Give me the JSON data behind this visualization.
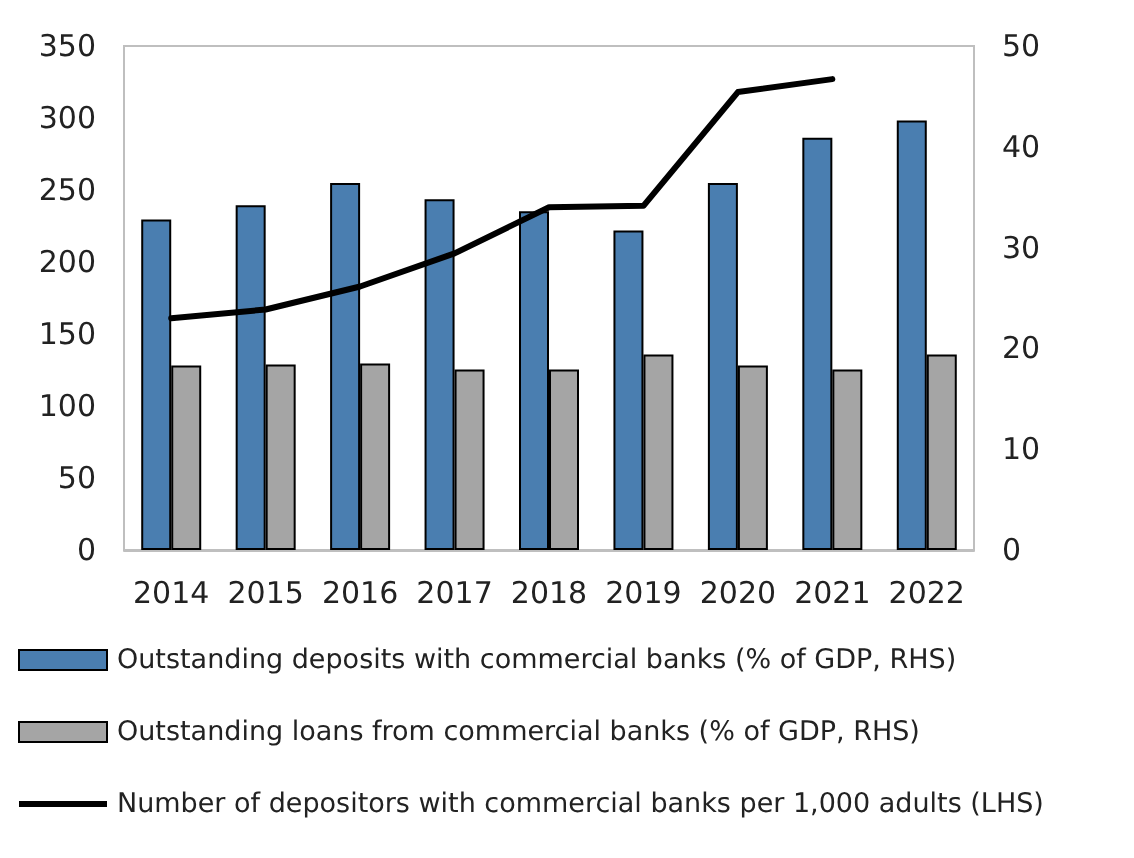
{
  "chart_data": {
    "type": "bar",
    "categories": [
      "2014",
      "2015",
      "2016",
      "2017",
      "2018",
      "2019",
      "2020",
      "2021",
      "2022"
    ],
    "series": [
      {
        "name": "Outstanding deposits with commercial banks (% of GDP, RHS)",
        "color": "#4a7eb0",
        "axis": "y2",
        "values": [
          32.8,
          34.2,
          36.4,
          34.8,
          33.6,
          31.7,
          36.4,
          40.9,
          42.6
        ]
      },
      {
        "name": "Outstanding loans from commercial banks (% of GDP, RHS)",
        "color": "#a5a5a5",
        "axis": "y2",
        "values": [
          18.3,
          18.4,
          18.5,
          17.9,
          17.9,
          19.4,
          18.3,
          17.9,
          19.4
        ]
      },
      {
        "name": "Number of depositors with commercial banks per 1,000 adults (LHS)",
        "color": "#000000",
        "type": "line",
        "marker": "none",
        "values": [
          161,
          167,
          183,
          206,
          238,
          239,
          318,
          327,
          null
        ]
      }
    ],
    "ylim": [
      0,
      350
    ],
    "yticks": [
      0,
      50,
      100,
      150,
      200,
      250,
      300,
      350
    ],
    "y2lim": [
      0,
      50
    ],
    "y2ticks": [
      0,
      10,
      20,
      30,
      40,
      50
    ],
    "grid": false,
    "legend": "bottom"
  }
}
